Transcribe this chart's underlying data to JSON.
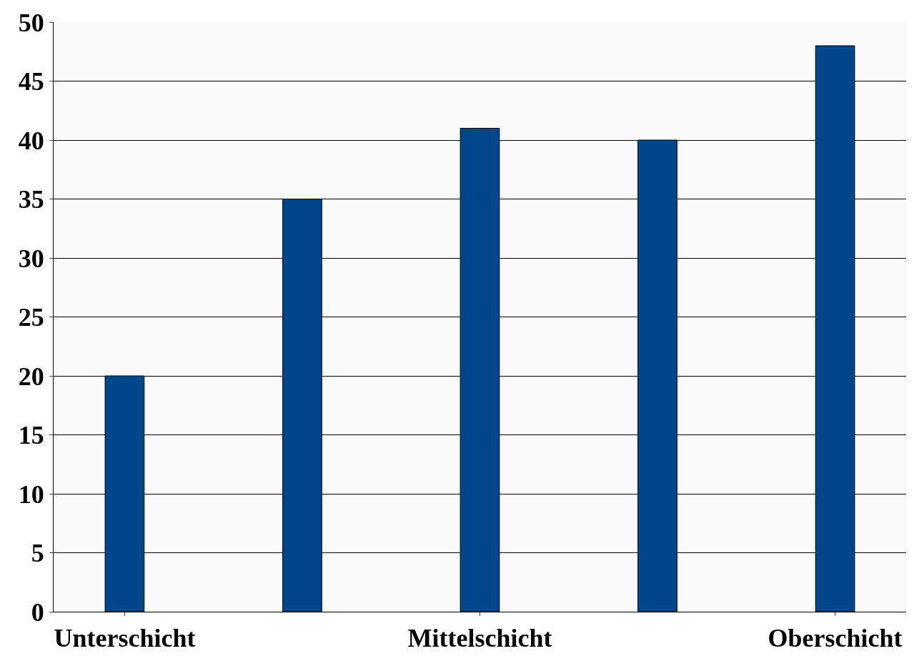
{
  "chart_data": {
    "type": "bar",
    "categories": [
      "Unterschicht",
      null,
      "Mittelschicht",
      null,
      "Oberschicht"
    ],
    "values": [
      20,
      35,
      41,
      40,
      48
    ],
    "color": "#00468b",
    "ylim": [
      0,
      50
    ],
    "yticks": [
      0,
      5,
      10,
      15,
      20,
      25,
      30,
      35,
      40,
      45,
      50
    ],
    "grid": "y"
  }
}
